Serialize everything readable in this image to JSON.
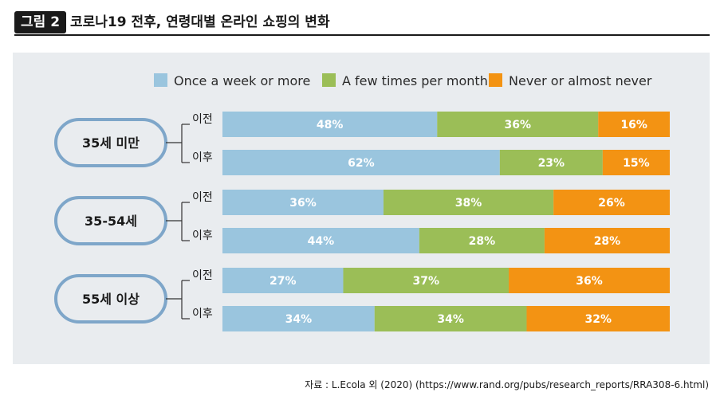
{
  "figure": {
    "badge": "그림 2",
    "title": "코로나19 전후, 연령대별 온라인 쇼핑의 변화"
  },
  "source": "자료 : L.Ecola 외 (2020) (https://www.rand.org/pubs/research_reports/RRA308-6.html)",
  "colors": {
    "series": [
      "#9ac5de",
      "#9bbe57",
      "#f39313"
    ],
    "group_ring": "#7ea6c9",
    "panel": "#e9ecef"
  },
  "chart_data": {
    "type": "bar",
    "orientation": "horizontal",
    "stacked": true,
    "title": "코로나19 전후, 연령대별 온라인 쇼핑의 변화",
    "xlim": [
      0,
      100
    ],
    "unit": "%",
    "legend_position": "top",
    "series_names": [
      "Once a week or more",
      "A few times per month",
      "Never or almost never"
    ],
    "groups": [
      {
        "label": "35세 미만",
        "bars": [
          {
            "period": "이전",
            "values": [
              48,
              36,
              16
            ]
          },
          {
            "period": "이후",
            "values": [
              62,
              23,
              15
            ]
          }
        ]
      },
      {
        "label": "35-54세",
        "bars": [
          {
            "period": "이전",
            "values": [
              36,
              38,
              26
            ]
          },
          {
            "period": "이후",
            "values": [
              44,
              28,
              28
            ]
          }
        ]
      },
      {
        "label": "55세 이상",
        "bars": [
          {
            "period": "이전",
            "values": [
              27,
              37,
              36
            ]
          },
          {
            "period": "이후",
            "values": [
              34,
              34,
              32
            ]
          }
        ]
      }
    ]
  }
}
